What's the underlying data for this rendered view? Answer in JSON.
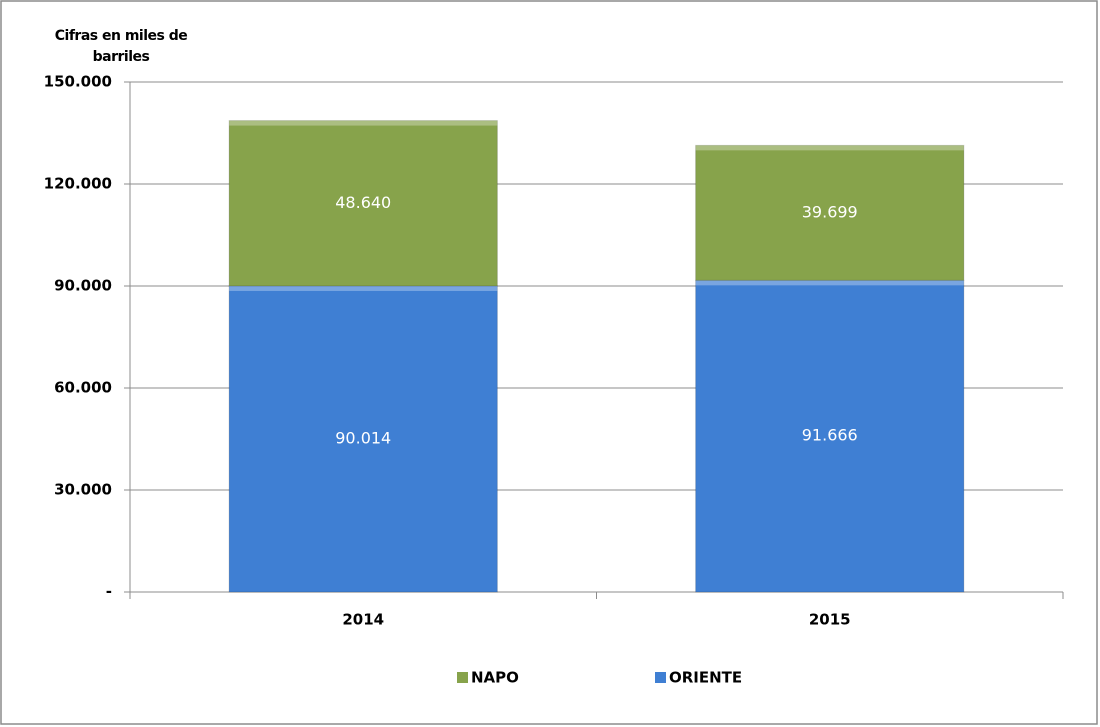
{
  "chart_data": {
    "type": "stacked_bar",
    "y_label": "Cifras en miles de barriles",
    "categories": [
      "2014",
      "2015"
    ],
    "series": [
      {
        "name": "ORIENTE",
        "color": "#3f7fd3",
        "values": [
          90014,
          91666
        ],
        "value_labels": [
          "90.014",
          "91.666"
        ]
      },
      {
        "name": "NAPO",
        "color": "#87a34b",
        "values": [
          48640,
          39699
        ],
        "value_labels": [
          "48.640",
          "39.699"
        ]
      }
    ],
    "ylim": [
      0,
      150000
    ],
    "yticks": [
      {
        "value": 0,
        "label": "-"
      },
      {
        "value": 30000,
        "label": "30.000"
      },
      {
        "value": 60000,
        "label": "60.000"
      },
      {
        "value": 90000,
        "label": "90.000"
      },
      {
        "value": 120000,
        "label": "120.000"
      },
      {
        "value": 150000,
        "label": "150.000"
      }
    ],
    "grid": true,
    "legend": "bottom"
  }
}
